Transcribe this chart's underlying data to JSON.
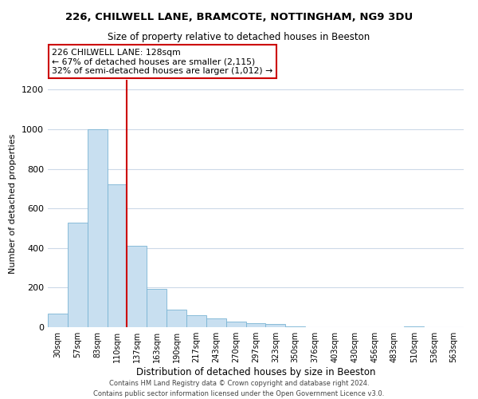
{
  "title": "226, CHILWELL LANE, BRAMCOTE, NOTTINGHAM, NG9 3DU",
  "subtitle": "Size of property relative to detached houses in Beeston",
  "xlabel": "Distribution of detached houses by size in Beeston",
  "ylabel": "Number of detached properties",
  "bar_labels": [
    "30sqm",
    "57sqm",
    "83sqm",
    "110sqm",
    "137sqm",
    "163sqm",
    "190sqm",
    "217sqm",
    "243sqm",
    "270sqm",
    "297sqm",
    "323sqm",
    "350sqm",
    "376sqm",
    "403sqm",
    "430sqm",
    "456sqm",
    "483sqm",
    "510sqm",
    "536sqm",
    "563sqm"
  ],
  "bar_values": [
    70,
    530,
    1000,
    720,
    410,
    195,
    90,
    60,
    43,
    30,
    22,
    15,
    5,
    0,
    0,
    0,
    0,
    0,
    5,
    0,
    0
  ],
  "bar_color": "#c8dff0",
  "bar_edge_color": "#7ab4d4",
  "vline_x_index": 3.5,
  "vline_color": "#cc0000",
  "annotation_line1": "226 CHILWELL LANE: 128sqm",
  "annotation_line2": "← 67% of detached houses are smaller (2,115)",
  "annotation_line3": "32% of semi-detached houses are larger (1,012) →",
  "annotation_box_color": "#ffffff",
  "annotation_box_edge": "#cc0000",
  "ylim": [
    0,
    1250
  ],
  "yticks": [
    0,
    200,
    400,
    600,
    800,
    1000,
    1200
  ],
  "footer_line1": "Contains HM Land Registry data © Crown copyright and database right 2024.",
  "footer_line2": "Contains public sector information licensed under the Open Government Licence v3.0.",
  "background_color": "#ffffff",
  "grid_color": "#ccd9e8"
}
